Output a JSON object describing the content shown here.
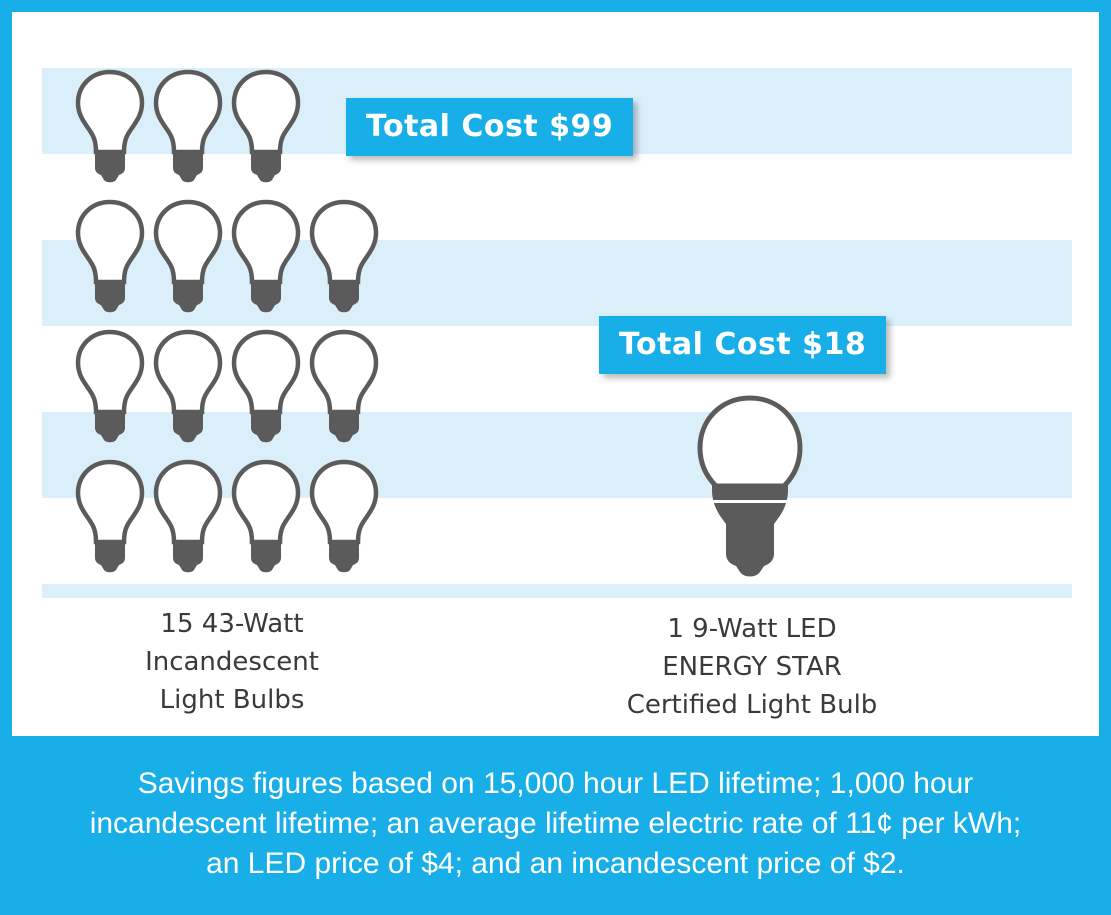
{
  "colors": {
    "accent": "#18aee8",
    "stripe": "#dbeffb",
    "bulb": "#5b5b5b",
    "text": "#3a3a3a"
  },
  "incandescent": {
    "cost_label": "Total Cost $99",
    "count": 15,
    "caption": [
      "15 43-Watt",
      "Incandescent",
      "Light Bulbs"
    ],
    "icon": "incandescent-bulb-icon"
  },
  "led": {
    "cost_label": "Total Cost $18",
    "count": 1,
    "caption": [
      "1 9-Watt LED",
      "ENERGY STAR",
      "Certified Light Bulb"
    ],
    "icon": "led-bulb-icon"
  },
  "footer": {
    "lines": [
      "Savings figures based on 15,000 hour LED lifetime; 1,000 hour",
      "incandescent lifetime; an average lifetime electric rate of 11¢ per kWh;",
      "an LED price of $4; and  an incandescent price of $2."
    ]
  }
}
